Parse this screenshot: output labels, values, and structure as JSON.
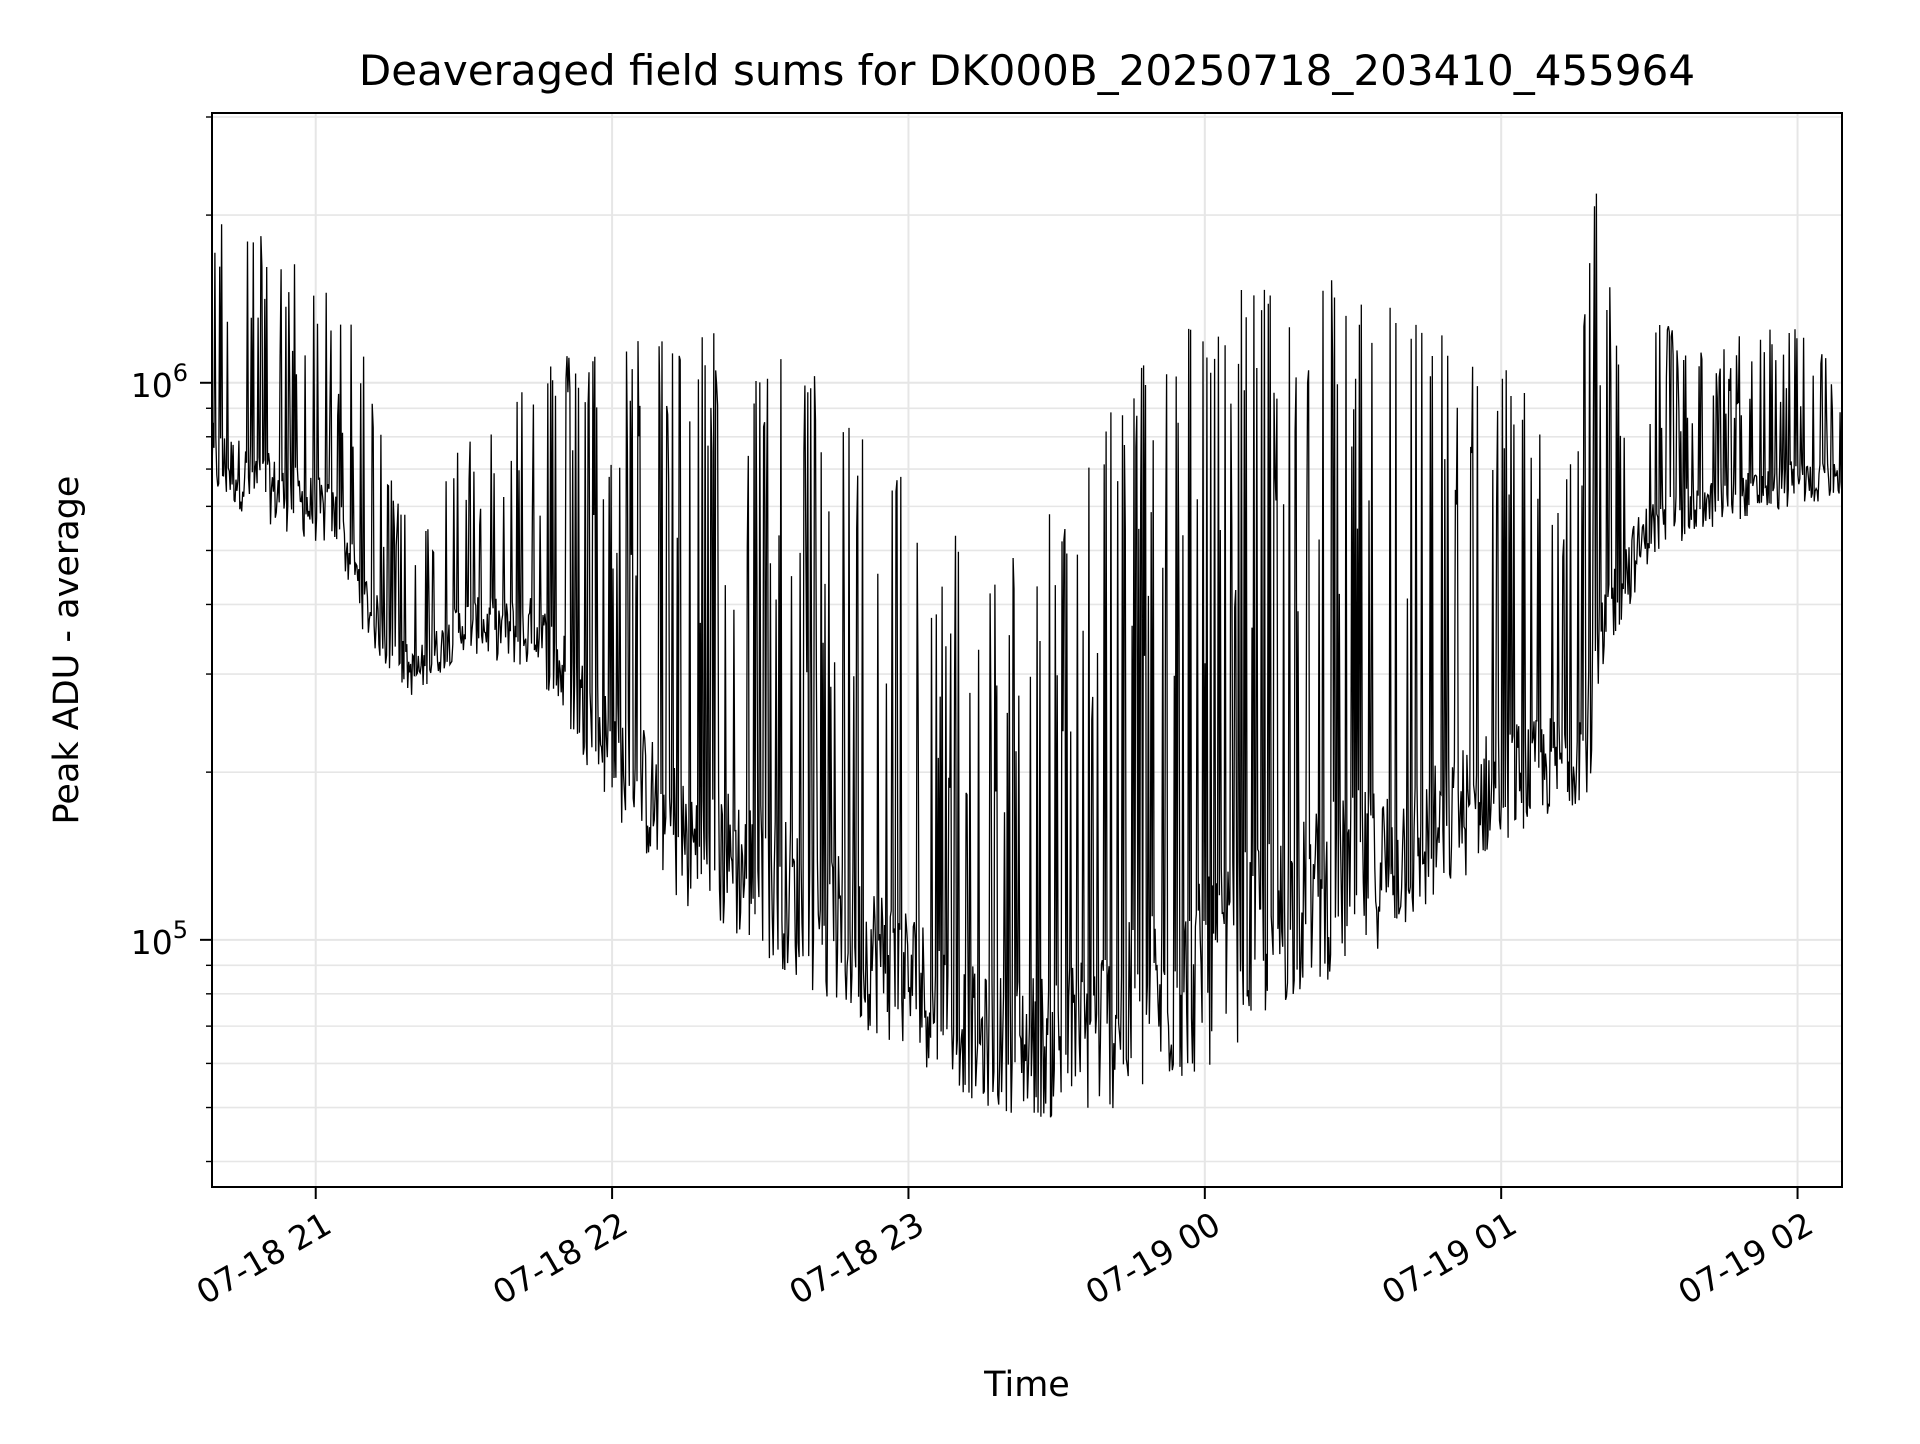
{
  "chart_data": {
    "type": "line",
    "title": "Deaveraged field sums for DK000B_20250718_203410_455964",
    "xlabel": "Time",
    "ylabel": "Peak ADU - average",
    "yscale": "log",
    "grid": true,
    "line_color": "#000000",
    "grid_color": "#e6e6e6",
    "x_range": [
      "2025-07-18 20:39",
      "2025-07-19 02:09"
    ],
    "ylim": [
      36000,
      3050000
    ],
    "x_ticks": [
      {
        "value": "2025-07-18 21:00",
        "label": "07-18 21"
      },
      {
        "value": "2025-07-18 22:00",
        "label": "07-18 22"
      },
      {
        "value": "2025-07-18 23:00",
        "label": "07-18 23"
      },
      {
        "value": "2025-07-19 00:00",
        "label": "07-19 00"
      },
      {
        "value": "2025-07-19 01:00",
        "label": "07-19 01"
      },
      {
        "value": "2025-07-19 02:00",
        "label": "07-19 02"
      }
    ],
    "y_ticks": [
      {
        "value": 100000,
        "base": "10",
        "exp": "5"
      },
      {
        "value": 1000000,
        "base": "10",
        "exp": "6"
      }
    ],
    "series": [
      {
        "envelope": {
          "times": [
            "2025-07-18 20:39",
            "2025-07-18 20:54",
            "2025-07-18 21:04",
            "2025-07-18 21:10",
            "2025-07-18 21:15",
            "2025-07-18 21:20",
            "2025-07-18 21:30",
            "2025-07-18 21:45",
            "2025-07-18 22:00",
            "2025-07-18 22:15",
            "2025-07-18 22:30",
            "2025-07-18 22:45",
            "2025-07-18 23:00",
            "2025-07-18 23:15",
            "2025-07-18 23:30",
            "2025-07-18 23:45",
            "2025-07-19 00:00",
            "2025-07-19 00:15",
            "2025-07-19 00:30",
            "2025-07-19 00:45",
            "2025-07-19 01:00",
            "2025-07-19 01:15",
            "2025-07-19 01:19",
            "2025-07-19 01:22",
            "2025-07-19 01:30",
            "2025-07-19 01:45",
            "2025-07-19 02:00",
            "2025-07-19 02:09"
          ],
          "low": [
            620000,
            540000,
            500000,
            350000,
            300000,
            270000,
            330000,
            300000,
            170000,
            110000,
            95000,
            75000,
            62000,
            50000,
            47000,
            50000,
            58000,
            75000,
            90000,
            110000,
            150000,
            175000,
            190000,
            330000,
            480000,
            560000,
            600000,
            620000
          ],
          "high": [
            2200000,
            1700000,
            1500000,
            1100000,
            700000,
            600000,
            800000,
            1100000,
            1200000,
            1300000,
            1200000,
            1000000,
            800000,
            450000,
            600000,
            1100000,
            1400000,
            1600000,
            1600000,
            1300000,
            1100000,
            800000,
            2700000,
            1600000,
            1300000,
            1200000,
            1300000,
            1100000
          ]
        }
      }
    ]
  }
}
